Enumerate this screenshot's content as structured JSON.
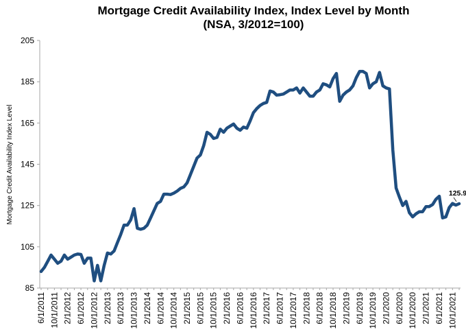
{
  "chart_data": {
    "type": "line",
    "title": "Mortgage Credit Availability Index, Index Level by Month",
    "subtitle": "(NSA, 3/2012=100)",
    "xlabel": "",
    "ylabel": "Mortgage Credit Availability Index Level",
    "ylim": [
      85,
      205
    ],
    "yticks": [
      85,
      105,
      125,
      145,
      165,
      185,
      205
    ],
    "grid": false,
    "line_color": "#1f4e80",
    "x_start": "6/1/2011",
    "x_end": "12/1/2021",
    "x_tick_labels": [
      "6/1/2011",
      "10/1/2011",
      "2/1/2012",
      "6/1/2012",
      "10/1/2012",
      "2/1/2013",
      "6/1/2013",
      "10/1/2013",
      "2/1/2014",
      "6/1/2014",
      "10/1/2014",
      "2/1/2015",
      "6/1/2015",
      "10/1/2015",
      "2/1/2016",
      "6/1/2016",
      "10/1/2016",
      "2/1/2017",
      "6/1/2017",
      "10/1/2017",
      "2/1/2018",
      "6/1/2018",
      "10/1/2018",
      "2/1/2019",
      "6/1/2019",
      "10/1/2019",
      "2/1/2020",
      "6/1/2020",
      "10/1/2020",
      "2/1/2021",
      "6/1/2021",
      "10/1/2021"
    ],
    "values": [
      93,
      95,
      98,
      101,
      99,
      97,
      98,
      101,
      99,
      100,
      101,
      101.5,
      101.3,
      97,
      99.5,
      99.5,
      88.5,
      96,
      88.5,
      96,
      102,
      101.5,
      103,
      107,
      111,
      115.5,
      115.5,
      118,
      123.5,
      114,
      113.5,
      114,
      115.5,
      119,
      122.5,
      126,
      127,
      130.5,
      130.5,
      130.3,
      131,
      132,
      133.3,
      134,
      136,
      140,
      144,
      148,
      149.5,
      154,
      160.5,
      159.5,
      157.5,
      158,
      162,
      160.5,
      162.5,
      163.5,
      164.5,
      162.5,
      161.5,
      163,
      162.5,
      166,
      170,
      172,
      173.5,
      174.5,
      175,
      180.5,
      180,
      178.5,
      178.7,
      179,
      180,
      181,
      181,
      182,
      179.5,
      182,
      180,
      178,
      178,
      180,
      181,
      184,
      183.5,
      182.5,
      186.5,
      189,
      175.5,
      178.5,
      180,
      181,
      183,
      187,
      190,
      190,
      189,
      182,
      184,
      185,
      189.5,
      183,
      182,
      181.5,
      152,
      133.5,
      129,
      125,
      127,
      121.5,
      119.5,
      121,
      122,
      122,
      124.5,
      124.5,
      125.5,
      128,
      129.5,
      119,
      119.5,
      124,
      126,
      125.2,
      125.9
    ],
    "annotation": "125.9"
  }
}
